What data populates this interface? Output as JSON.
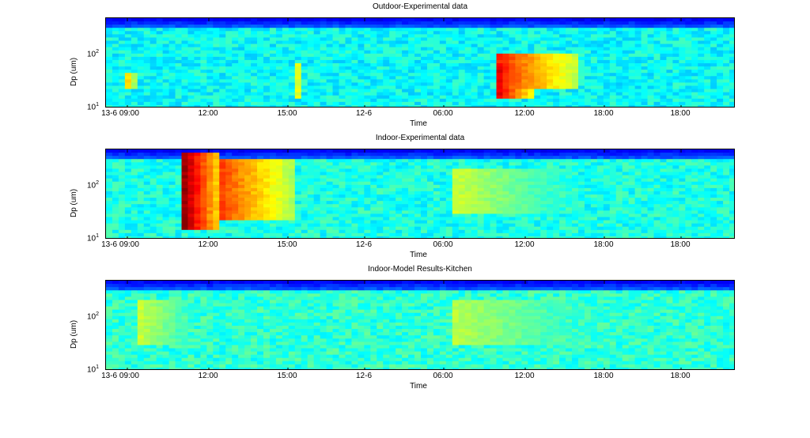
{
  "chart_data": [
    {
      "type": "heatmap",
      "title": "Outdoor-Experimental data",
      "xlabel": "Time",
      "ylabel": "Dp (um)",
      "y_scale": "log",
      "y_ticks": [
        {
          "base": "10",
          "exp": "1"
        },
        {
          "base": "10",
          "exp": "2"
        }
      ],
      "x_ticks": [
        "13-6  09:00",
        "12:00",
        "15:00",
        "12-6",
        "06:00",
        "12:00",
        "18:00",
        "18:00"
      ],
      "colormap": "jet",
      "background_level": 0.38,
      "hotspots": [
        {
          "t": 0.62,
          "t2": 0.75,
          "d": 0.2,
          "d2": 0.6,
          "level": 0.85
        },
        {
          "t": 0.62,
          "t2": 0.68,
          "d": 0.1,
          "d2": 0.5,
          "level": 0.92
        },
        {
          "t": 0.3,
          "t2": 0.31,
          "d": 0.1,
          "d2": 0.5,
          "level": 0.72
        },
        {
          "t": 0.03,
          "t2": 0.05,
          "d": 0.2,
          "d2": 0.4,
          "level": 0.72
        }
      ]
    },
    {
      "type": "heatmap",
      "title": "Indoor-Experimental data",
      "xlabel": "Time",
      "ylabel": "Dp (um)",
      "y_scale": "log",
      "y_ticks": [
        {
          "base": "10",
          "exp": "1"
        },
        {
          "base": "10",
          "exp": "2"
        }
      ],
      "x_ticks": [
        "13-6  09:00",
        "12:00",
        "15:00",
        "12-6",
        "06:00",
        "12:00",
        "18:00",
        "18:00"
      ],
      "colormap": "jet",
      "background_level": 0.4,
      "hotspots": [
        {
          "t": 0.12,
          "t2": 0.18,
          "d": 0.1,
          "d2": 0.95,
          "level": 1.0
        },
        {
          "t": 0.18,
          "t2": 0.3,
          "d": 0.2,
          "d2": 0.9,
          "level": 0.82
        },
        {
          "t": 0.55,
          "t2": 0.75,
          "d": 0.3,
          "d2": 0.8,
          "level": 0.58
        }
      ]
    },
    {
      "type": "heatmap",
      "title": "Indoor-Model Results-Kitchen",
      "xlabel": "Time",
      "ylabel": "Dp (um)",
      "y_scale": "log",
      "y_ticks": [
        {
          "base": "10",
          "exp": "1"
        },
        {
          "base": "10",
          "exp": "2"
        }
      ],
      "x_ticks": [
        "13-6  09:00",
        "12:00",
        "15:00",
        "12-6",
        "06:00",
        "12:00",
        "18:00",
        "18:00"
      ],
      "colormap": "jet",
      "background_level": 0.42,
      "hotspots": [
        {
          "t": 0.05,
          "t2": 0.15,
          "d": 0.3,
          "d2": 0.8,
          "level": 0.58
        },
        {
          "t": 0.55,
          "t2": 0.8,
          "d": 0.3,
          "d2": 0.8,
          "level": 0.56
        }
      ]
    }
  ]
}
